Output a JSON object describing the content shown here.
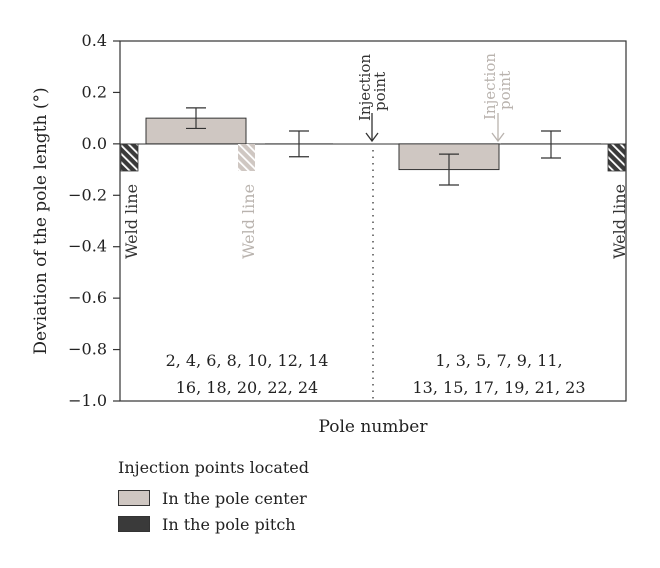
{
  "chart_data": {
    "type": "bar",
    "xlabel": "Pole number",
    "ylabel": "Deviation of the pole length (°)",
    "ylim": [
      -1.0,
      0.4
    ],
    "yticks": [
      "0.4",
      "0.2",
      "0.0",
      "−0.2",
      "−0.4",
      "−0.6",
      "−0.8",
      "−1.0"
    ],
    "ytick_values": [
      0.4,
      0.2,
      0.0,
      -0.2,
      -0.4,
      -0.6,
      -0.8,
      -1.0
    ],
    "bars": [
      {
        "group": "even",
        "value": 0.1,
        "err_low": 0.06,
        "err_high": 0.14,
        "fill": "#cfc7c2"
      },
      {
        "group": "even",
        "value": 0.0,
        "err_low": -0.05,
        "err_high": 0.05,
        "fill": "none"
      },
      {
        "group": "odd",
        "value": -0.1,
        "err_low": -0.16,
        "err_high": -0.04,
        "fill": "#cfc7c2"
      },
      {
        "group": "odd",
        "value": 0.0,
        "err_low": -0.055,
        "err_high": 0.05,
        "fill": "none"
      }
    ],
    "group_labels": {
      "even_line1": "2, 4, 6, 8, 10, 12, 14",
      "even_line2": "16, 18, 20, 22, 24",
      "odd_line1": "1, 3, 5, 7, 9, 11,",
      "odd_line2": "13, 15, 17, 19, 21, 23"
    },
    "annotations": {
      "weld_line": "Weld line",
      "injection_line1": "Injection",
      "injection_line2": "point"
    }
  },
  "colors": {
    "center": "#cfc7c2",
    "pitch": "#3a3a3a",
    "light_text": "#b9b3ae",
    "axis": "#333333"
  },
  "legend": {
    "title": "Injection points located",
    "items": [
      {
        "label": "In the pole center",
        "color": "#cfc7c2"
      },
      {
        "label": "In the pole pitch",
        "color": "#3a3a3a"
      }
    ]
  }
}
